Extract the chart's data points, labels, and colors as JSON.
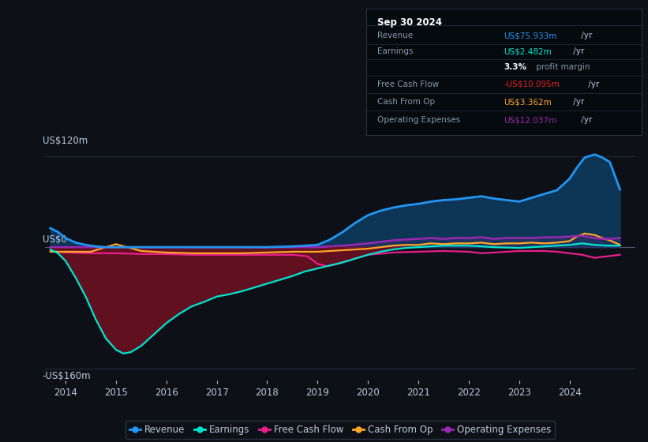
{
  "background_color": "#0d1117",
  "plot_bg_color": "#0d1117",
  "grid_color": "#2a3040",
  "text_color": "#c0c8d8",
  "label_color": "#8899aa",
  "y_label_top": "US$120m",
  "y_label_zero": "US$0",
  "y_label_bottom": "-US$160m",
  "ylim": [
    -175,
    145
  ],
  "xlim_start": 2013.6,
  "xlim_end": 2025.3,
  "x_ticks": [
    2014,
    2015,
    2016,
    2017,
    2018,
    2019,
    2020,
    2021,
    2022,
    2023,
    2024
  ],
  "colors": {
    "revenue": "#2196f3",
    "earnings": "#00e5d0",
    "free_cash_flow": "#e91e8c",
    "cash_from_op": "#ffa726",
    "operating_expenses": "#9c27b0",
    "revenue_fill": "#0d3a5e",
    "earnings_fill": "#6b1020"
  },
  "info_box": {
    "title": "Sep 30 2024",
    "title_color": "#ffffff",
    "bg_color": "#050a0e",
    "border_color": "#2a3040",
    "rows": [
      {
        "label": "Revenue",
        "value": "US$75.933m",
        "unit": " /yr",
        "value_color": "#2196f3",
        "bold_value": false
      },
      {
        "label": "Earnings",
        "value": "US$2.482m",
        "unit": " /yr",
        "value_color": "#00e5d0",
        "bold_value": false
      },
      {
        "label": "",
        "value": "3.3%",
        "unit": " profit margin",
        "value_color": "#ffffff",
        "bold_value": true
      },
      {
        "label": "Free Cash Flow",
        "value": "-US$10.095m",
        "unit": " /yr",
        "value_color": "#e61c24",
        "bold_value": false
      },
      {
        "label": "Cash From Op",
        "value": "US$3.362m",
        "unit": " /yr",
        "value_color": "#ffa726",
        "bold_value": false
      },
      {
        "label": "Operating Expenses",
        "value": "US$12.037m",
        "unit": " /yr",
        "value_color": "#9c27b0",
        "bold_value": false
      }
    ]
  },
  "legend": [
    {
      "label": "Revenue",
      "color": "#2196f3"
    },
    {
      "label": "Earnings",
      "color": "#00e5d0"
    },
    {
      "label": "Free Cash Flow",
      "color": "#e91e8c"
    },
    {
      "label": "Cash From Op",
      "color": "#ffa726"
    },
    {
      "label": "Operating Expenses",
      "color": "#9c27b0"
    }
  ],
  "revenue": {
    "x": [
      2013.7,
      2013.85,
      2014.0,
      2014.2,
      2014.4,
      2014.6,
      2014.8,
      2015.0,
      2015.3,
      2015.6,
      2016.0,
      2016.5,
      2017.0,
      2017.5,
      2018.0,
      2018.5,
      2019.0,
      2019.25,
      2019.5,
      2019.75,
      2020.0,
      2020.25,
      2020.5,
      2020.75,
      2021.0,
      2021.25,
      2021.5,
      2021.75,
      2022.0,
      2022.25,
      2022.5,
      2022.75,
      2023.0,
      2023.25,
      2023.5,
      2023.75,
      2024.0,
      2024.15,
      2024.3,
      2024.5,
      2024.65,
      2024.8,
      2025.0
    ],
    "y": [
      25,
      20,
      12,
      6,
      3,
      1,
      0,
      0,
      0,
      0,
      0,
      0,
      0,
      0,
      0,
      1,
      3,
      10,
      20,
      32,
      42,
      48,
      52,
      55,
      57,
      60,
      62,
      63,
      65,
      67,
      64,
      62,
      60,
      65,
      70,
      75,
      90,
      105,
      118,
      122,
      118,
      112,
      76
    ]
  },
  "earnings": {
    "x": [
      2013.7,
      2013.85,
      2014.0,
      2014.2,
      2014.4,
      2014.6,
      2014.8,
      2015.0,
      2015.15,
      2015.3,
      2015.5,
      2015.75,
      2016.0,
      2016.25,
      2016.5,
      2016.75,
      2017.0,
      2017.25,
      2017.5,
      2017.75,
      2018.0,
      2018.25,
      2018.5,
      2018.75,
      2019.0,
      2019.25,
      2019.5,
      2019.75,
      2020.0,
      2020.25,
      2020.5,
      2020.75,
      2021.0,
      2021.5,
      2022.0,
      2022.5,
      2023.0,
      2023.5,
      2024.0,
      2024.25,
      2024.5,
      2024.75,
      2025.0
    ],
    "y": [
      -3,
      -8,
      -18,
      -40,
      -65,
      -95,
      -120,
      -135,
      -140,
      -138,
      -130,
      -115,
      -100,
      -88,
      -78,
      -72,
      -65,
      -62,
      -58,
      -53,
      -48,
      -43,
      -38,
      -32,
      -28,
      -24,
      -20,
      -15,
      -10,
      -6,
      -3,
      -1,
      0,
      2,
      2,
      0,
      -1,
      1,
      3,
      5,
      3,
      2,
      2
    ]
  },
  "free_cash_flow": {
    "x": [
      2013.7,
      2014.0,
      2014.5,
      2015.0,
      2015.5,
      2016.0,
      2016.5,
      2017.0,
      2017.5,
      2018.0,
      2018.5,
      2018.8,
      2019.0,
      2019.2,
      2019.4,
      2019.6,
      2019.8,
      2020.0,
      2020.5,
      2021.0,
      2021.5,
      2022.0,
      2022.25,
      2022.5,
      2022.75,
      2023.0,
      2023.25,
      2023.5,
      2023.75,
      2024.0,
      2024.25,
      2024.5,
      2024.75,
      2025.0
    ],
    "y": [
      -5,
      -7,
      -8,
      -8,
      -9,
      -9,
      -10,
      -10,
      -10,
      -10,
      -10,
      -12,
      -22,
      -25,
      -22,
      -18,
      -14,
      -10,
      -7,
      -6,
      -5,
      -6,
      -8,
      -7,
      -6,
      -5,
      -5,
      -5,
      -6,
      -8,
      -10,
      -14,
      -12,
      -10
    ]
  },
  "cash_from_op": {
    "x": [
      2013.7,
      2014.0,
      2014.5,
      2015.0,
      2015.5,
      2016.0,
      2016.5,
      2017.0,
      2017.5,
      2018.0,
      2018.5,
      2019.0,
      2019.5,
      2020.0,
      2020.25,
      2020.5,
      2020.75,
      2021.0,
      2021.25,
      2021.5,
      2021.75,
      2022.0,
      2022.25,
      2022.5,
      2022.75,
      2023.0,
      2023.25,
      2023.5,
      2023.75,
      2024.0,
      2024.15,
      2024.3,
      2024.5,
      2024.65,
      2024.8,
      2025.0
    ],
    "y": [
      -6,
      -6,
      -6,
      4,
      -5,
      -7,
      -8,
      -8,
      -8,
      -7,
      -6,
      -6,
      -4,
      -2,
      0,
      2,
      3,
      3,
      5,
      4,
      5,
      5,
      6,
      4,
      5,
      5,
      6,
      5,
      6,
      8,
      14,
      18,
      16,
      12,
      9,
      3
    ]
  },
  "operating_expenses": {
    "x": [
      2013.7,
      2019.0,
      2019.5,
      2020.0,
      2020.25,
      2020.5,
      2020.75,
      2021.0,
      2021.25,
      2021.5,
      2021.75,
      2022.0,
      2022.25,
      2022.5,
      2022.75,
      2023.0,
      2023.25,
      2023.5,
      2023.75,
      2024.0,
      2024.25,
      2024.5,
      2024.65,
      2024.8,
      2025.0
    ],
    "y": [
      0,
      0,
      2,
      5,
      7,
      9,
      10,
      11,
      12,
      11,
      12,
      12,
      13,
      11,
      12,
      12,
      12,
      13,
      13,
      14,
      15,
      12,
      11,
      11,
      12
    ]
  }
}
